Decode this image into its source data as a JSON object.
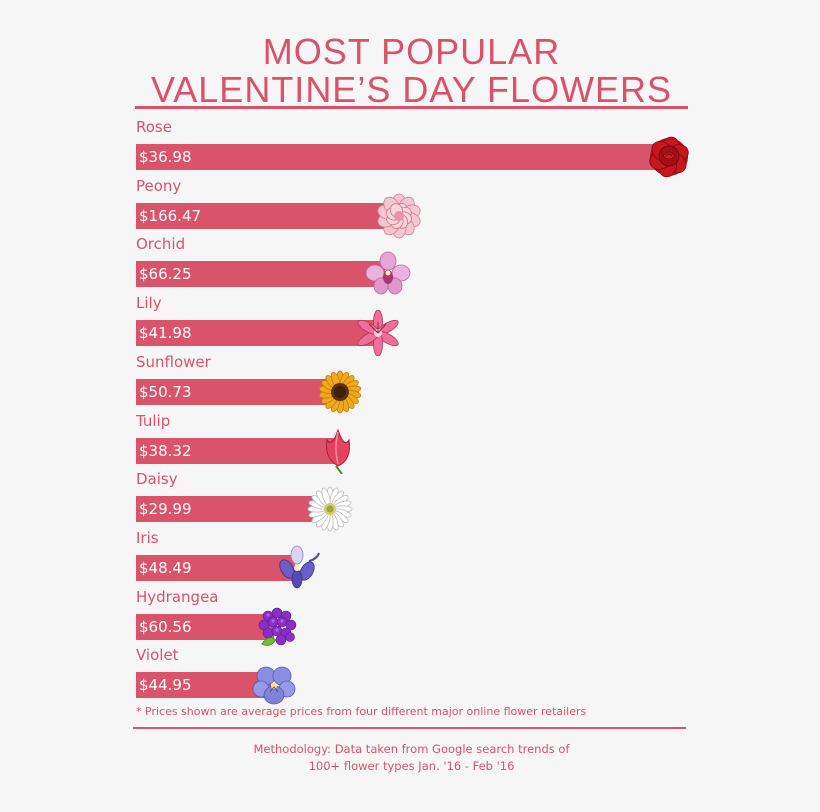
{
  "title": {
    "line1": "MOST POPULAR",
    "line2": "VALENTINE’S DAY FLOWERS"
  },
  "colors": {
    "accent": "#d9526a",
    "bar": "#d9546b",
    "background": "#f6f6f6"
  },
  "chart_data": {
    "type": "bar",
    "orientation": "horizontal",
    "categories": [
      "Rose",
      "Peony",
      "Orchid",
      "Lily",
      "Sunflower",
      "Tulip",
      "Daisy",
      "Iris",
      "Hydrangea",
      "Violet"
    ],
    "value_labels": [
      "$36.98",
      "$166.47",
      "$66.25",
      "$41.98",
      "$50.73",
      "$38.32",
      "$29.99",
      "$48.49",
      "$60.56",
      "$44.95"
    ],
    "relative_popularity": [
      1.0,
      0.49,
      0.47,
      0.45,
      0.38,
      0.375,
      0.36,
      0.3,
      0.26,
      0.255
    ],
    "icons": [
      "rose-icon",
      "peony-icon",
      "orchid-icon",
      "lily-icon",
      "sunflower-icon",
      "tulip-icon",
      "daisy-icon",
      "iris-icon",
      "hydrangea-icon",
      "violet-icon"
    ],
    "grid": false,
    "legend": "none"
  },
  "footnote": "* Prices shown are average prices from four different major online flower retailers",
  "methodology": {
    "line1": "Methodology: Data taken from Google search trends of",
    "line2": "100+ flower types Jan. '16 - Feb '16"
  }
}
